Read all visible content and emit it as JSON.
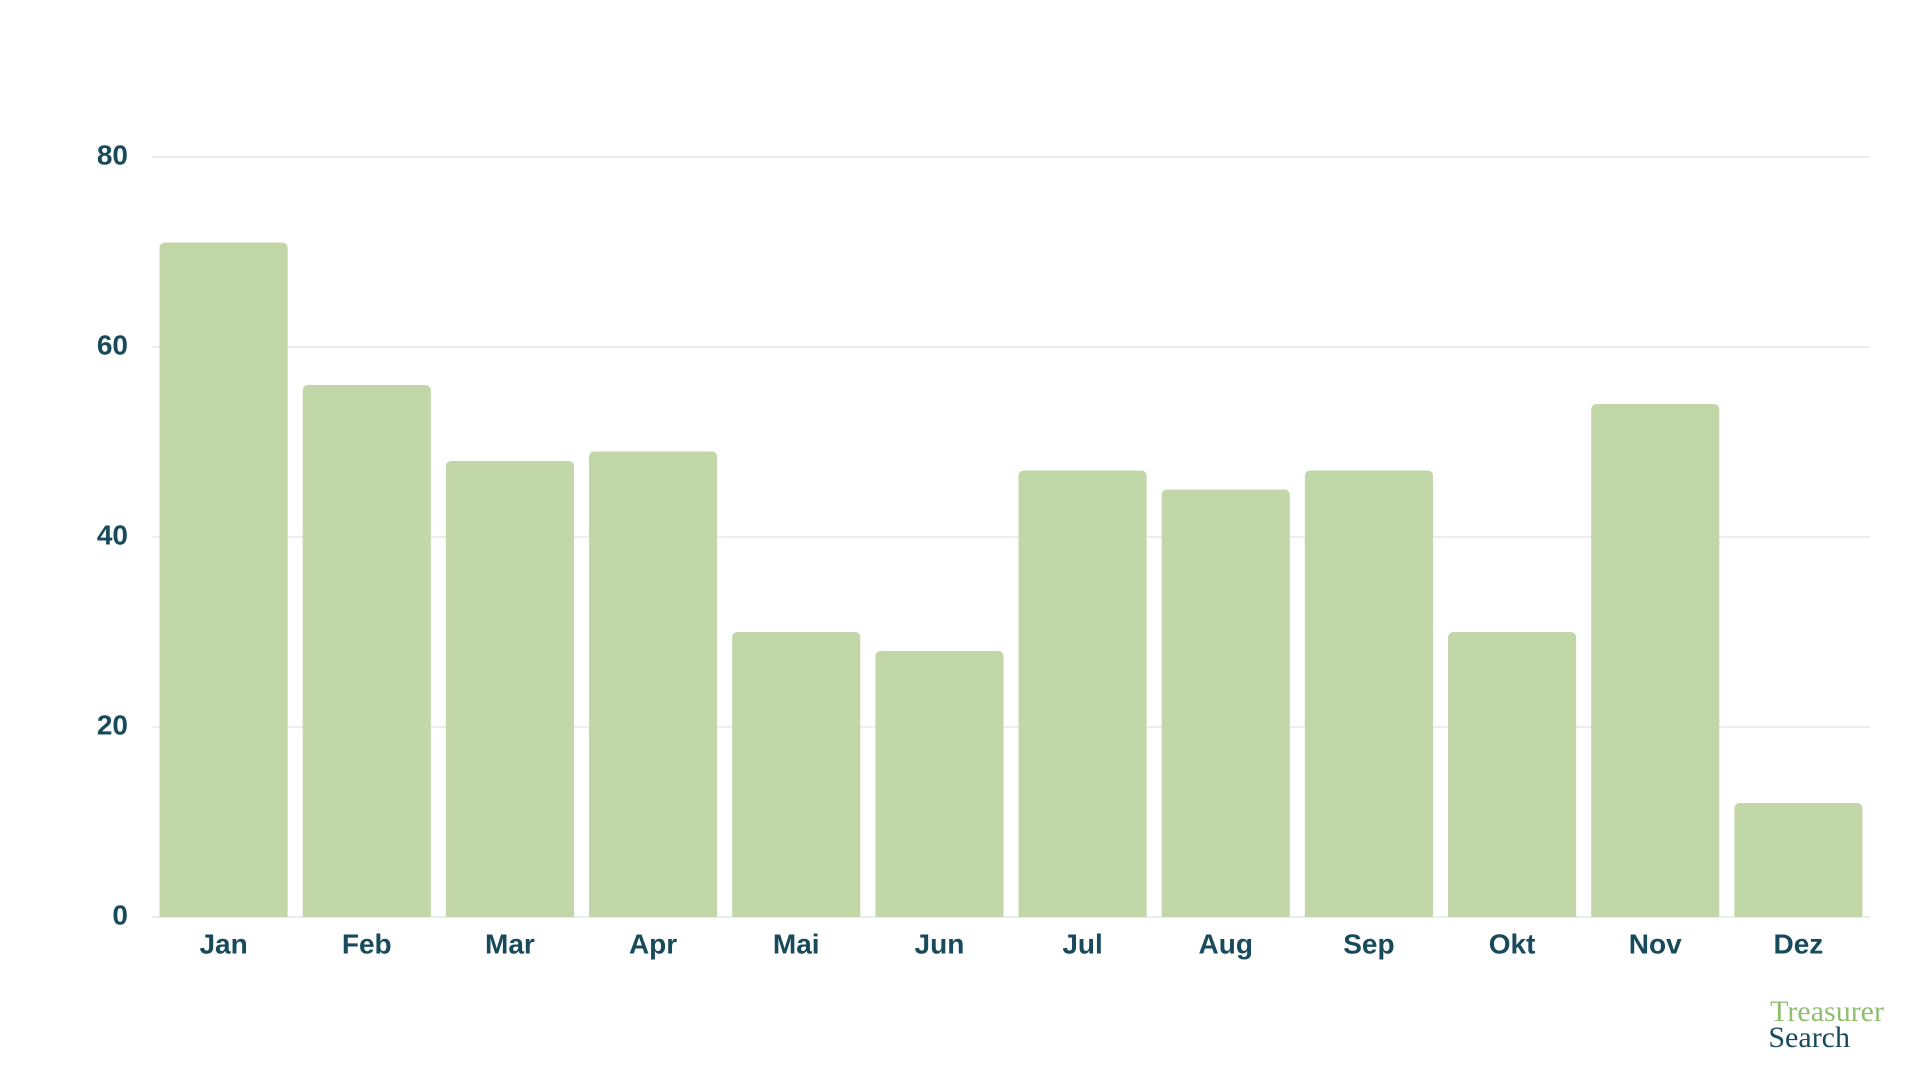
{
  "chart_data": {
    "type": "bar",
    "categories": [
      "Jan",
      "Feb",
      "Mar",
      "Apr",
      "Mai",
      "Jun",
      "Jul",
      "Aug",
      "Sep",
      "Okt",
      "Nov",
      "Dez"
    ],
    "values": [
      71,
      56,
      48,
      49,
      30,
      28,
      47,
      45,
      47,
      30,
      54,
      12
    ],
    "color": "#c2d7a8",
    "ylim": [
      0,
      80
    ],
    "yticks": [
      0,
      20,
      40,
      60,
      80
    ],
    "grid": true
  },
  "logo": {
    "line1": "Treasurer",
    "line2": "Search"
  }
}
